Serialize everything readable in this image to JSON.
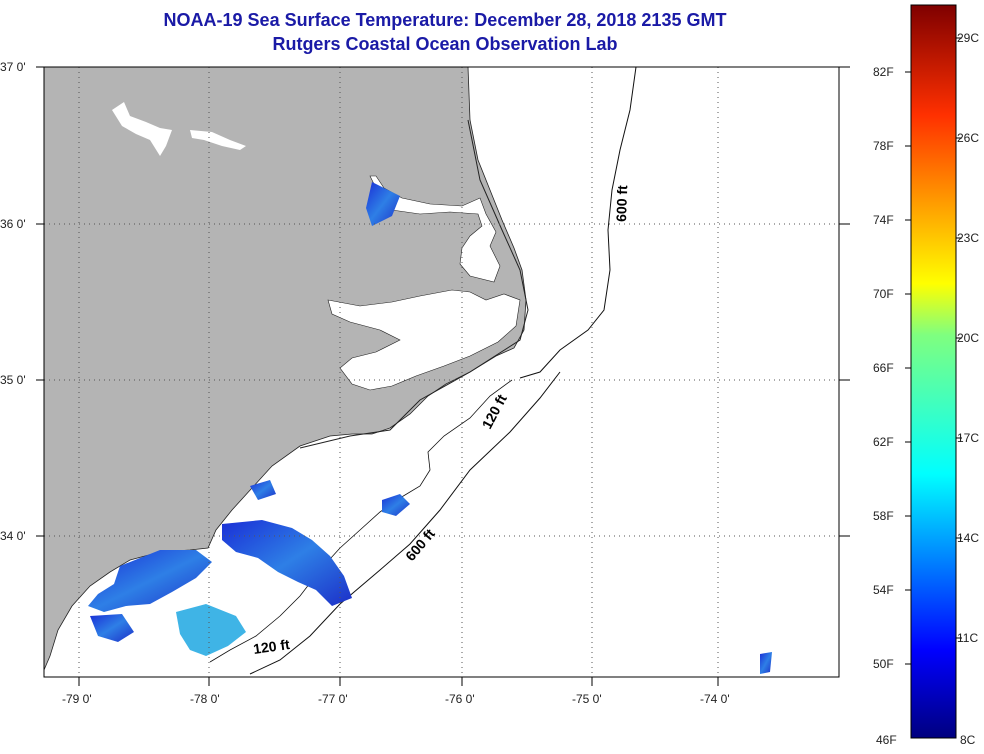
{
  "title": {
    "line1": "NOAA-19 Sea Surface Temperature:  December 28, 2018 2135 GMT",
    "line2": "Rutgers Coastal Ocean Observation Lab"
  },
  "map": {
    "lat_labels": [
      "37 0'",
      "36 0'",
      "35 0'",
      "34 0'"
    ],
    "lon_labels": [
      "-79 0'",
      "-78 0'",
      "-77 0'",
      "-76 0'",
      "-75 0'",
      "-74 0'"
    ],
    "contour_labels": [
      "600 ft",
      "120 ft",
      "600 ft",
      "120 ft"
    ],
    "land_color": "#b4b4b4",
    "ocean_color": "#ffffff"
  },
  "colorbar": {
    "fahrenheit_labels": [
      "82F",
      "78F",
      "74F",
      "70F",
      "66F",
      "62F",
      "58F",
      "54F",
      "50F",
      "46F"
    ],
    "celsius_labels": [
      "29C",
      "26C",
      "23C",
      "20C",
      "17C",
      "14C",
      "11C",
      "8C"
    ],
    "range_f": [
      46,
      86
    ],
    "range_c": [
      8,
      30
    ],
    "colormap": "jet"
  }
}
